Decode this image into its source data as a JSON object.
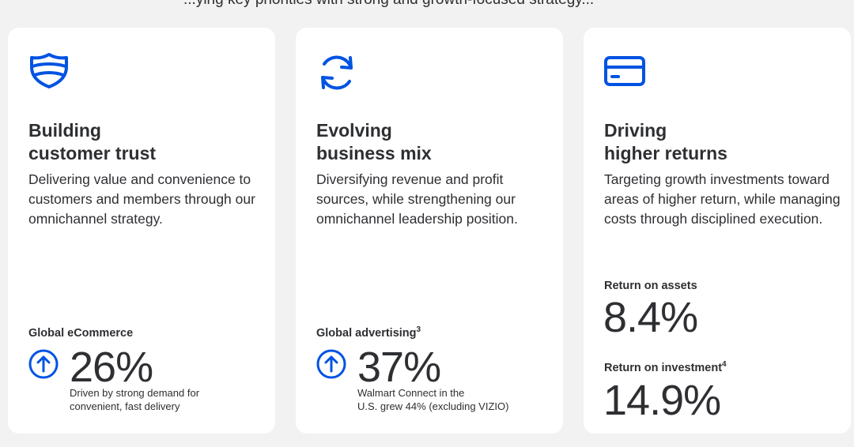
{
  "header": {
    "partial_text": "...ying key priorities with strong and growth-focused strategy..."
  },
  "colors": {
    "accent_blue": "#0053e2",
    "text": "#2e2f32",
    "card_bg": "#ffffff",
    "page_bg": "#f2f2f2"
  },
  "cards": [
    {
      "icon": "shield-icon",
      "title_line1": "Building",
      "title_line2": "customer trust",
      "description": "Delivering value and convenience to customers and members through our omnichannel strategy.",
      "metric_label": "Global eCommerce",
      "metric_value": "26%",
      "metric_note_line1": "Driven by strong demand for",
      "metric_note_line2": "convenient, fast delivery"
    },
    {
      "icon": "refresh-cycle-icon",
      "title_line1": "Evolving",
      "title_line2": "business mix",
      "description": "Diversifying revenue and profit sources, while strengthening our omnichannel leadership position.",
      "metric_label": "Global advertising",
      "metric_label_sup": "3",
      "metric_value": "37%",
      "metric_note_line1": "Walmart Connect in the",
      "metric_note_line2": "U.S. grew 44% (excluding VIZIO)"
    },
    {
      "icon": "credit-card-icon",
      "title_line1": "Driving",
      "title_line2": "higher returns",
      "description": "Targeting growth investments toward areas of higher return, while managing costs through disciplined execution.",
      "metric1_label": "Return on assets",
      "metric1_value": "8.4%",
      "metric2_label": "Return on investment",
      "metric2_label_sup": "4",
      "metric2_value": "14.9%"
    }
  ]
}
